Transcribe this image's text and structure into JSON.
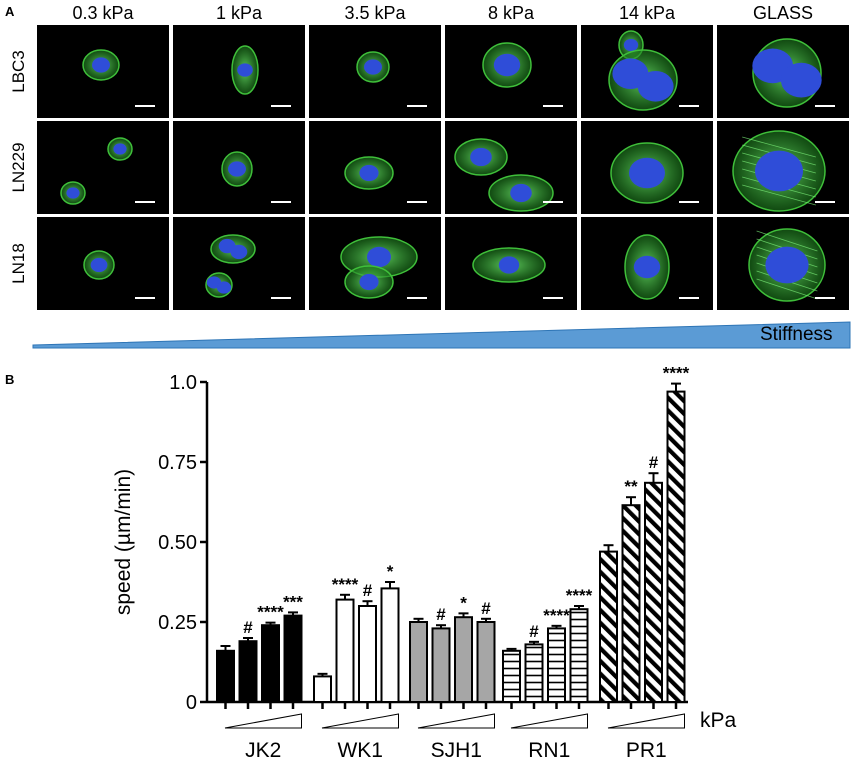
{
  "panel_a": {
    "letter": "A",
    "columns": [
      "0.3 kPa",
      "1 kPa",
      "3.5 kPa",
      "8 kPa",
      "14 kPa",
      "GLASS"
    ],
    "rows": [
      "LBC3",
      "LN229",
      "LN18"
    ],
    "stiffness_label": "Stiffness",
    "colors": {
      "background": "#000000",
      "actin": "#3fbf3a",
      "nucleus": "#2f4dd8",
      "wedge": "#5b9bd5"
    }
  },
  "panel_b": {
    "letter": "B",
    "unit_label": "kPa",
    "chart_data": {
      "type": "bar",
      "ylabel": "speed (µm/min)",
      "xlabel": "",
      "ylim": [
        0,
        1.0
      ],
      "yticks": [
        "0",
        "0.25",
        "0.50",
        "0.75",
        "1.0"
      ],
      "ytick_values": [
        0,
        0.25,
        0.5,
        0.75,
        1.0
      ],
      "groups": [
        {
          "name": "JK2",
          "pattern": "solid-black",
          "values": [
            0.16,
            0.19,
            0.24,
            0.27
          ],
          "errors": [
            0.015,
            0.01,
            0.008,
            0.01
          ],
          "annotations": [
            "",
            "#",
            "****",
            "***"
          ]
        },
        {
          "name": "WK1",
          "pattern": "white",
          "values": [
            0.08,
            0.32,
            0.3,
            0.355
          ],
          "errors": [
            0.008,
            0.015,
            0.015,
            0.02
          ],
          "annotations": [
            "",
            "****",
            "#",
            "*"
          ]
        },
        {
          "name": "SJH1",
          "pattern": "gray",
          "values": [
            0.25,
            0.23,
            0.265,
            0.25
          ],
          "errors": [
            0.01,
            0.01,
            0.012,
            0.01
          ],
          "annotations": [
            "",
            "#",
            "*",
            "#"
          ]
        },
        {
          "name": "RN1",
          "pattern": "horizontal-lines",
          "values": [
            0.16,
            0.18,
            0.23,
            0.29
          ],
          "errors": [
            0.006,
            0.008,
            0.008,
            0.01
          ],
          "annotations": [
            "",
            "#",
            "****",
            "****"
          ]
        },
        {
          "name": "PR1",
          "pattern": "diagonal-lines",
          "values": [
            0.47,
            0.615,
            0.685,
            0.97
          ],
          "errors": [
            0.02,
            0.025,
            0.03,
            0.025
          ],
          "annotations": [
            "",
            "**",
            "#",
            "****"
          ]
        }
      ],
      "colors": {
        "solid-black": "#000000",
        "gray": "#a6a6a6",
        "white": "#ffffff"
      }
    }
  }
}
